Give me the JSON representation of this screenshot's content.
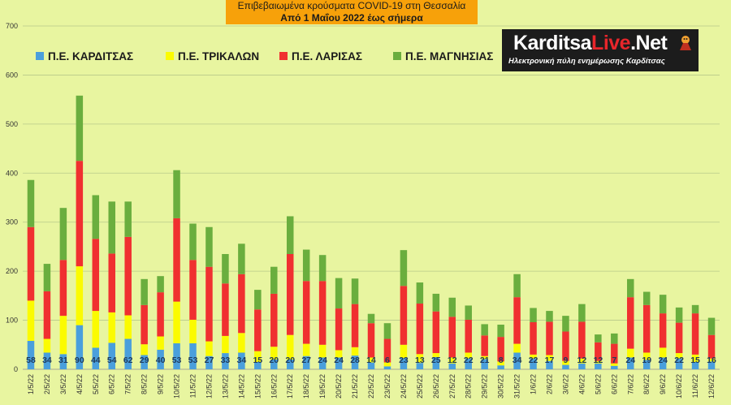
{
  "title": {
    "line1": "Επιβεβαιωμένα κρούσματα COVID-19 στη Θεσσαλία",
    "line2": "Από 1 Μαΐου 2022 έως σήμερα"
  },
  "logo": {
    "name_part1": "Karditsa",
    "name_part2": "Live",
    "name_part3": ".Net",
    "tagline": "Ηλεκτρονική πύλη ενημέρωσης Καρδίτσας",
    "icon": "mascot-icon"
  },
  "colors": {
    "background": "#e8f5a0",
    "karditsa": "#4a9fdc",
    "trikala": "#fbfb00",
    "larisa": "#f03030",
    "magnesia": "#6aae3e",
    "title_bg": "#f7a10a"
  },
  "chart_data": {
    "type": "bar",
    "stacked": true,
    "ylim": [
      0,
      700
    ],
    "yticks": [
      0,
      100,
      200,
      300,
      400,
      500,
      600,
      700
    ],
    "grid": true,
    "legend_position": "top-left",
    "categories": [
      "1/5/22",
      "2/5/22",
      "3/5/22",
      "4/5/22",
      "5/5/22",
      "6/5/22",
      "7/5/22",
      "8/5/22",
      "9/5/22",
      "10/5/22",
      "11/5/22",
      "12/5/22",
      "13/5/22",
      "14/5/22",
      "15/5/22",
      "16/5/22",
      "17/5/22",
      "18/5/22",
      "19/5/22",
      "20/5/22",
      "21/5/22",
      "22/5/22",
      "23/5/22",
      "24/5/22",
      "25/5/22",
      "26/5/22",
      "27/5/22",
      "28/5/22",
      "29/5/22",
      "30/5/22",
      "31/5/22",
      "1/6/22",
      "2/6/22",
      "3/6/22",
      "4/6/22",
      "5/6/22",
      "6/6/22",
      "7/6/22",
      "8/6/22",
      "9/6/22",
      "10/6/22",
      "11/6/22",
      "12/6/22"
    ],
    "series": [
      {
        "name": "Π.Ε. ΚΑΡΔΙΤΣΑΣ",
        "color_key": "karditsa",
        "values": [
          58,
          34,
          31,
          90,
          44,
          54,
          62,
          29,
          40,
          53,
          53,
          27,
          33,
          34,
          15,
          20,
          20,
          27,
          24,
          24,
          28,
          14,
          6,
          23,
          13,
          25,
          12,
          22,
          21,
          8,
          34,
          22,
          17,
          9,
          12,
          12,
          7,
          24,
          19,
          24,
          22,
          15,
          16
        ]
      },
      {
        "name": "Π.Ε. ΤΡΙΚΑΛΩΝ",
        "color_key": "trikala",
        "values": [
          82,
          28,
          78,
          120,
          75,
          62,
          48,
          22,
          27,
          85,
          48,
          30,
          35,
          40,
          22,
          26,
          50,
          25,
          26,
          15,
          17,
          10,
          8,
          27,
          18,
          8,
          12,
          12,
          6,
          8,
          18,
          8,
          12,
          8,
          10,
          5,
          5,
          18,
          15,
          20,
          11,
          15,
          6
        ]
      },
      {
        "name": "Π.Ε. ΛΑΡΙΣΑΣ",
        "color_key": "larisa",
        "values": [
          150,
          97,
          114,
          215,
          147,
          120,
          160,
          80,
          90,
          170,
          122,
          152,
          107,
          120,
          85,
          108,
          165,
          128,
          130,
          85,
          88,
          70,
          48,
          120,
          103,
          85,
          83,
          67,
          42,
          50,
          95,
          66,
          68,
          60,
          75,
          38,
          40,
          105,
          97,
          70,
          62,
          84,
          48
        ]
      },
      {
        "name": "Π.Ε. ΜΑΓΝΗΣΙΑΣ",
        "color_key": "magnesia",
        "values": [
          96,
          56,
          106,
          133,
          89,
          106,
          72,
          53,
          33,
          98,
          74,
          81,
          60,
          62,
          40,
          55,
          77,
          64,
          53,
          62,
          52,
          19,
          32,
          73,
          43,
          36,
          39,
          29,
          23,
          25,
          47,
          29,
          22,
          32,
          36,
          16,
          21,
          37,
          27,
          38,
          31,
          17,
          35
        ]
      }
    ],
    "data_labels_series": "Π.Ε. ΚΑΡΔΙΤΣΑΣ"
  }
}
